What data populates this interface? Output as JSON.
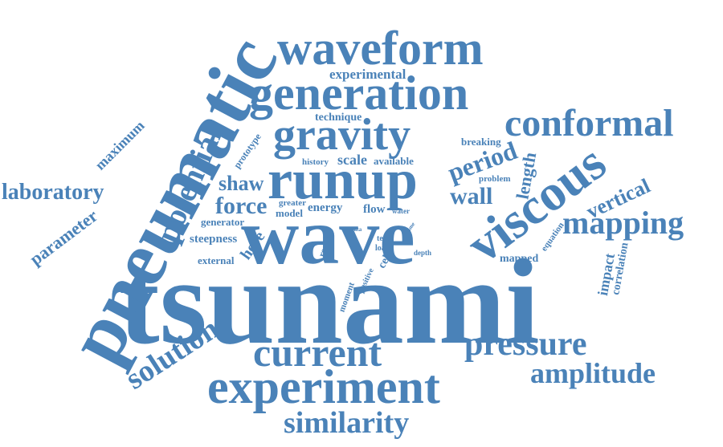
{
  "color": "#4a82b8",
  "words": {
    "tsunami": "tsunami",
    "wave": "wave",
    "pneumatic": "pneumatic",
    "runup": "runup",
    "viscous": "viscous",
    "waveform": "waveform",
    "generation": "generation",
    "gravity": "gravity",
    "conformal": "conformal",
    "experiment": "experiment",
    "current": "current",
    "pressure": "pressure",
    "amplitude": "amplitude",
    "similarity": "similarity",
    "solution": "solution",
    "mapping": "mapping",
    "potential": "potential",
    "laboratory": "laboratory",
    "period": "period",
    "wall": "wall",
    "force": "force",
    "shaw": "shaw",
    "vertical": "vertical",
    "length": "length",
    "parameter": "parameter",
    "maximum": "maximum",
    "experimental": "experimental",
    "technique": "technique",
    "scale": "scale",
    "available": "available",
    "history": "history",
    "breaking": "breaking",
    "prototype": "prototype",
    "problem": "problem",
    "greater": "greater",
    "model": "model",
    "energy": "energy",
    "flow": "flow",
    "water": "water",
    "generator": "generator",
    "steepness": "steepness",
    "here": "here",
    "external": "external",
    "result": "result",
    "test": "test",
    "load": "load",
    "data": "data",
    "time": "time",
    "cell": "cell",
    "depth": "depth",
    "moment": "moment",
    "positive": "positive",
    "equation": "equation",
    "mapped": "mapped",
    "impact": "impact",
    "correlation": "correlation"
  }
}
